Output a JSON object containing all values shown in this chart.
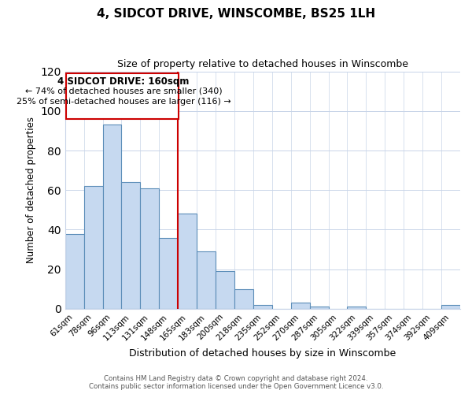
{
  "title": "4, SIDCOT DRIVE, WINSCOMBE, BS25 1LH",
  "subtitle": "Size of property relative to detached houses in Winscombe",
  "xlabel": "Distribution of detached houses by size in Winscombe",
  "ylabel": "Number of detached properties",
  "bar_labels": [
    "61sqm",
    "78sqm",
    "96sqm",
    "113sqm",
    "131sqm",
    "148sqm",
    "165sqm",
    "183sqm",
    "200sqm",
    "218sqm",
    "235sqm",
    "252sqm",
    "270sqm",
    "287sqm",
    "305sqm",
    "322sqm",
    "339sqm",
    "357sqm",
    "374sqm",
    "392sqm",
    "409sqm"
  ],
  "bar_values": [
    38,
    62,
    93,
    64,
    61,
    36,
    48,
    29,
    19,
    10,
    2,
    0,
    3,
    1,
    0,
    1,
    0,
    0,
    0,
    0,
    2
  ],
  "bar_color": "#c6d9f0",
  "bar_edge_color": "#5b8db8",
  "vline_x_index": 6,
  "vline_color": "#cc0000",
  "ylim": [
    0,
    120
  ],
  "yticks": [
    0,
    20,
    40,
    60,
    80,
    100,
    120
  ],
  "annotation_title": "4 SIDCOT DRIVE: 160sqm",
  "annotation_line1": "← 74% of detached houses are smaller (340)",
  "annotation_line2": "25% of semi-detached houses are larger (116) →",
  "annotation_box_color": "#cc0000",
  "footer_line1": "Contains HM Land Registry data © Crown copyright and database right 2024.",
  "footer_line2": "Contains public sector information licensed under the Open Government Licence v3.0.",
  "background_color": "#ffffff",
  "grid_color": "#c8d4e8"
}
